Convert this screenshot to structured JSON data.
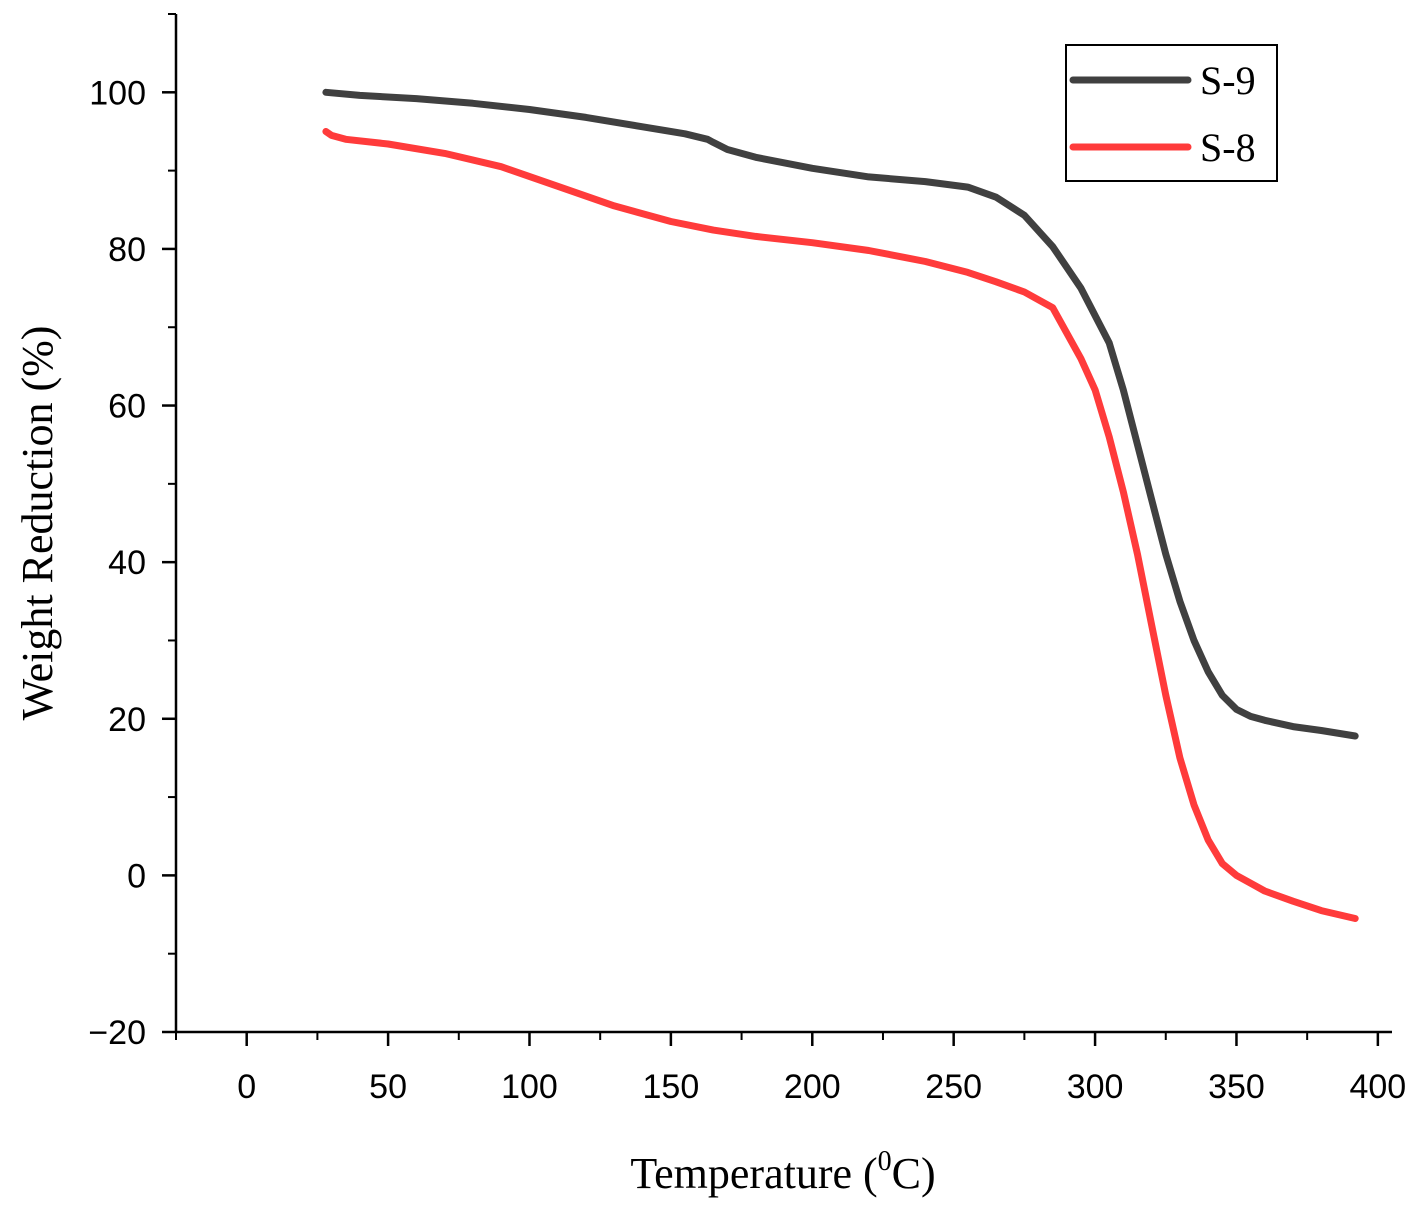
{
  "chart_data": {
    "type": "line",
    "title": "",
    "xlabel": "Temperature (",
    "xlabel_sup": "0",
    "xlabel_suffix": "C)",
    "ylabel": "Weight Reduction (%)",
    "xlim": [
      -25,
      405
    ],
    "ylim": [
      -20,
      110
    ],
    "xticks": [
      0,
      50,
      100,
      150,
      200,
      250,
      300,
      350,
      400
    ],
    "yticks": [
      -20,
      0,
      20,
      40,
      60,
      80,
      100
    ],
    "xtick_labels": [
      "0",
      "50",
      "100",
      "150",
      "200",
      "250",
      "300",
      "350",
      "400"
    ],
    "ytick_labels": [
      "−20",
      "0",
      "20",
      "40",
      "60",
      "80",
      "100"
    ],
    "grid": false,
    "legend_position": "top-right",
    "series": [
      {
        "name": "S-9",
        "color": "#404040",
        "x": [
          28,
          40,
          60,
          80,
          100,
          120,
          140,
          155,
          163,
          165,
          170,
          180,
          200,
          220,
          240,
          255,
          265,
          275,
          285,
          295,
          305,
          310,
          315,
          320,
          325,
          330,
          335,
          340,
          345,
          350,
          355,
          360,
          370,
          380,
          392
        ],
        "y": [
          100,
          99.6,
          99.2,
          98.6,
          97.8,
          96.8,
          95.6,
          94.7,
          94.0,
          93.6,
          92.7,
          91.7,
          90.3,
          89.2,
          88.6,
          87.9,
          86.6,
          84.3,
          80.3,
          75.0,
          68.0,
          62.0,
          55.0,
          48.0,
          41.0,
          35.0,
          30.0,
          26.0,
          23.0,
          21.2,
          20.3,
          19.8,
          19.0,
          18.5,
          17.8
        ]
      },
      {
        "name": "S-8",
        "color": "#ff3b3b",
        "x": [
          28,
          30,
          35,
          50,
          70,
          90,
          110,
          130,
          150,
          165,
          180,
          200,
          220,
          240,
          255,
          265,
          275,
          285,
          295,
          300,
          305,
          310,
          315,
          320,
          325,
          330,
          335,
          340,
          345,
          350,
          355,
          360,
          370,
          380,
          392
        ],
        "y": [
          95,
          94.5,
          94.0,
          93.4,
          92.2,
          90.5,
          88.0,
          85.5,
          83.5,
          82.4,
          81.6,
          80.8,
          79.8,
          78.4,
          77.0,
          75.8,
          74.5,
          72.5,
          66.0,
          62.0,
          56.0,
          49.0,
          41.0,
          32.0,
          23.0,
          15.0,
          9.0,
          4.5,
          1.5,
          0.0,
          -1.0,
          -2.0,
          -3.3,
          -4.5,
          -5.5
        ]
      }
    ]
  }
}
